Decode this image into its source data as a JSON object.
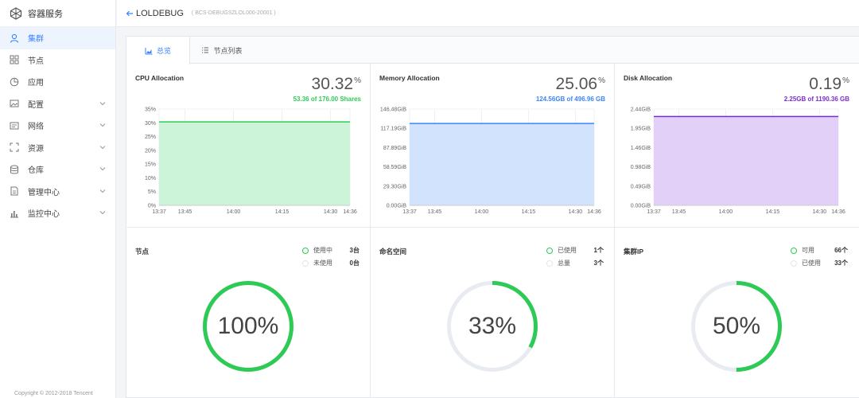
{
  "brand": {
    "title": "容器服务"
  },
  "sidebar": {
    "items": [
      {
        "label": "集群",
        "icon": "user-icon",
        "active": true,
        "chevron": false
      },
      {
        "label": "节点",
        "icon": "grid-icon",
        "active": false,
        "chevron": false
      },
      {
        "label": "应用",
        "icon": "pie-icon",
        "active": false,
        "chevron": false
      },
      {
        "label": "配置",
        "icon": "image-icon",
        "active": false,
        "chevron": true
      },
      {
        "label": "网络",
        "icon": "network-icon",
        "active": false,
        "chevron": true
      },
      {
        "label": "资源",
        "icon": "resource-icon",
        "active": false,
        "chevron": true
      },
      {
        "label": "仓库",
        "icon": "database-icon",
        "active": false,
        "chevron": true
      },
      {
        "label": "管理中心",
        "icon": "document-icon",
        "active": false,
        "chevron": true
      },
      {
        "label": "监控中心",
        "icon": "bar-chart-icon",
        "active": false,
        "chevron": true
      }
    ],
    "copyright": "Copyright © 2012-2018 Tencent"
  },
  "header": {
    "cluster_name": "LOLDEBUG",
    "cluster_id": "( BCS-DEBUGSZLOL000-20001 )"
  },
  "tabs": [
    {
      "label": "总览",
      "active": true
    },
    {
      "label": "节点列表",
      "active": false
    }
  ],
  "charts": {
    "cpu": {
      "title": "CPU Allocation",
      "value": "30.32",
      "unit": "%",
      "sub": "53.36 of 176.00 Shares",
      "color": "#2dcb56",
      "fill": "#c9f3d6"
    },
    "memory": {
      "title": "Memory Allocation",
      "value": "25.06",
      "unit": "%",
      "sub": "124.56GB of 496.96 GB",
      "color": "#3a84ff",
      "fill": "#cfe1fd"
    },
    "disk": {
      "title": "Disk Allocation",
      "value": "0.19",
      "unit": "%",
      "sub": "2.25GB of 1190.36 GB",
      "color": "#7b2bd6",
      "fill": "#e2cdf9"
    }
  },
  "chart_data": [
    {
      "type": "area",
      "title": "CPU Allocation",
      "x": [
        "13:37",
        "13:45",
        "14:00",
        "14:15",
        "14:30",
        "14:36"
      ],
      "y_ticks": [
        "0%",
        "5%",
        "10%",
        "15%",
        "20%",
        "25%",
        "30%",
        "35%"
      ],
      "ylim": [
        0,
        35
      ],
      "series": [
        {
          "name": "CPU",
          "values": [
            30.32,
            30.32,
            30.32,
            30.32,
            30.32,
            30.32
          ]
        }
      ]
    },
    {
      "type": "area",
      "title": "Memory Allocation",
      "x": [
        "13:37",
        "13:45",
        "14:00",
        "14:15",
        "14:30",
        "14:36"
      ],
      "y_ticks": [
        "0.00GiB",
        "29.30GiB",
        "58.59GiB",
        "87.89GiB",
        "117.19GiB",
        "146.48GiB"
      ],
      "ylim": [
        0,
        146.48
      ],
      "series": [
        {
          "name": "Memory",
          "values": [
            124.56,
            124.56,
            124.56,
            124.56,
            124.56,
            124.56
          ]
        }
      ]
    },
    {
      "type": "area",
      "title": "Disk Allocation",
      "x": [
        "13:37",
        "13:45",
        "14:00",
        "14:15",
        "14:30",
        "14:36"
      ],
      "y_ticks": [
        "0.00GiB",
        "0.49GiB",
        "0.98GiB",
        "1.46GiB",
        "1.95GiB",
        "2.44GiB"
      ],
      "ylim": [
        0,
        2.44
      ],
      "series": [
        {
          "name": "Disk",
          "values": [
            2.25,
            2.25,
            2.25,
            2.25,
            2.25,
            2.25
          ]
        }
      ]
    }
  ],
  "stats": {
    "nodes": {
      "title": "节点",
      "legend": [
        {
          "label": "使用中",
          "value": "3台",
          "active": true
        },
        {
          "label": "未使用",
          "value": "0台",
          "active": false
        }
      ],
      "percent": 100,
      "percent_label": "100%"
    },
    "namespaces": {
      "title": "命名空间",
      "legend": [
        {
          "label": "已使用",
          "value": "1个",
          "active": true
        },
        {
          "label": "总量",
          "value": "3个",
          "active": false
        }
      ],
      "percent": 33,
      "percent_label": "33%"
    },
    "cluster_ip": {
      "title": "集群IP",
      "legend": [
        {
          "label": "可用",
          "value": "66个",
          "active": true
        },
        {
          "label": "已使用",
          "value": "33个",
          "active": false
        }
      ],
      "percent": 50,
      "percent_label": "50%"
    }
  },
  "colors": {
    "accent": "#3a84ff",
    "success": "#2dcb56",
    "ring_bg": "#e8ecf1"
  }
}
